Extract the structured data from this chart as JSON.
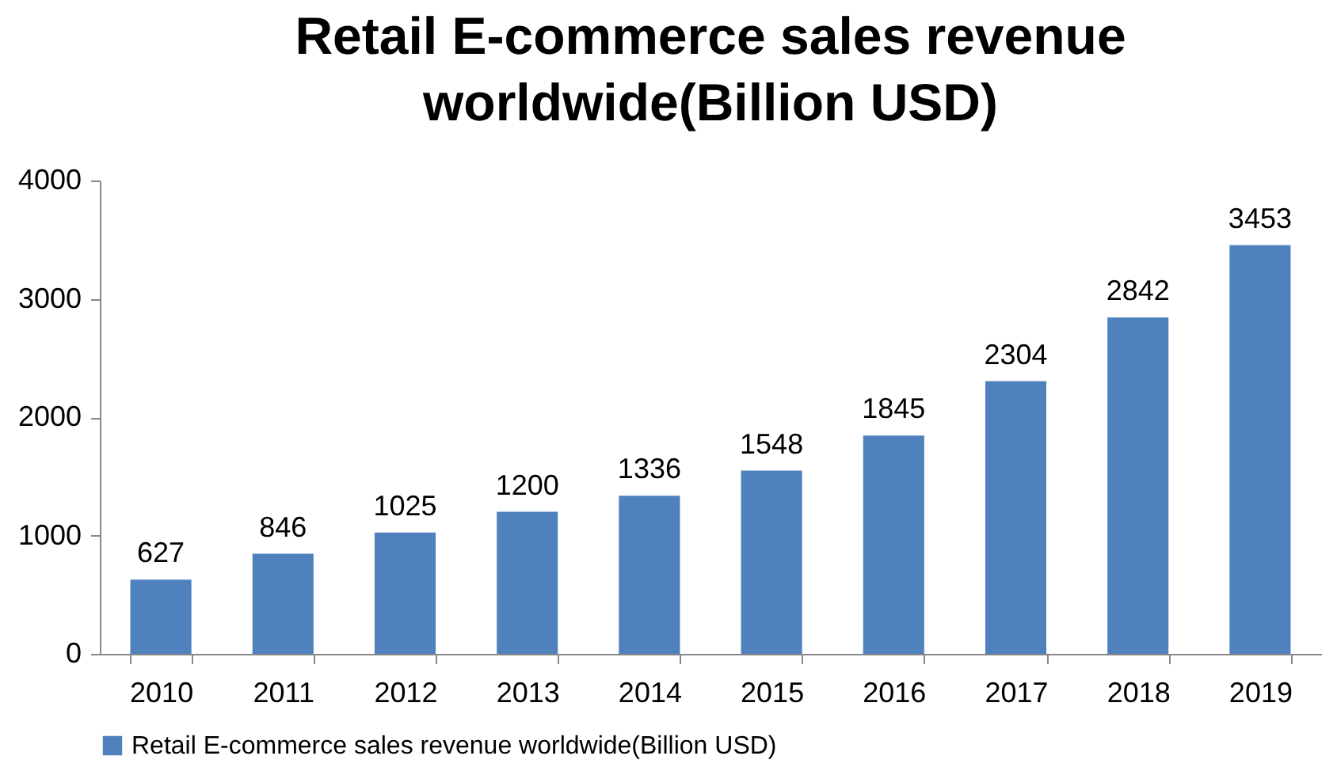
{
  "chart_data": {
    "type": "bar",
    "title": "Retail E-commerce sales revenue worldwide(Billion USD)",
    "categories": [
      "2010",
      "2011",
      "2012",
      "2013",
      "2014",
      "2015",
      "2016",
      "2017",
      "2018",
      "2019"
    ],
    "series": [
      {
        "name": "Retail E-commerce sales revenue worldwide(Billion USD)",
        "color": "#4f81bd",
        "values": [
          627,
          846,
          1025,
          1200,
          1336,
          1548,
          1845,
          2304,
          2842,
          3453
        ]
      }
    ],
    "ylim": [
      0,
      4000
    ],
    "yticks": [
      0,
      1000,
      2000,
      3000,
      4000
    ],
    "grid": false,
    "legend": "bottom",
    "data_labels": true
  }
}
